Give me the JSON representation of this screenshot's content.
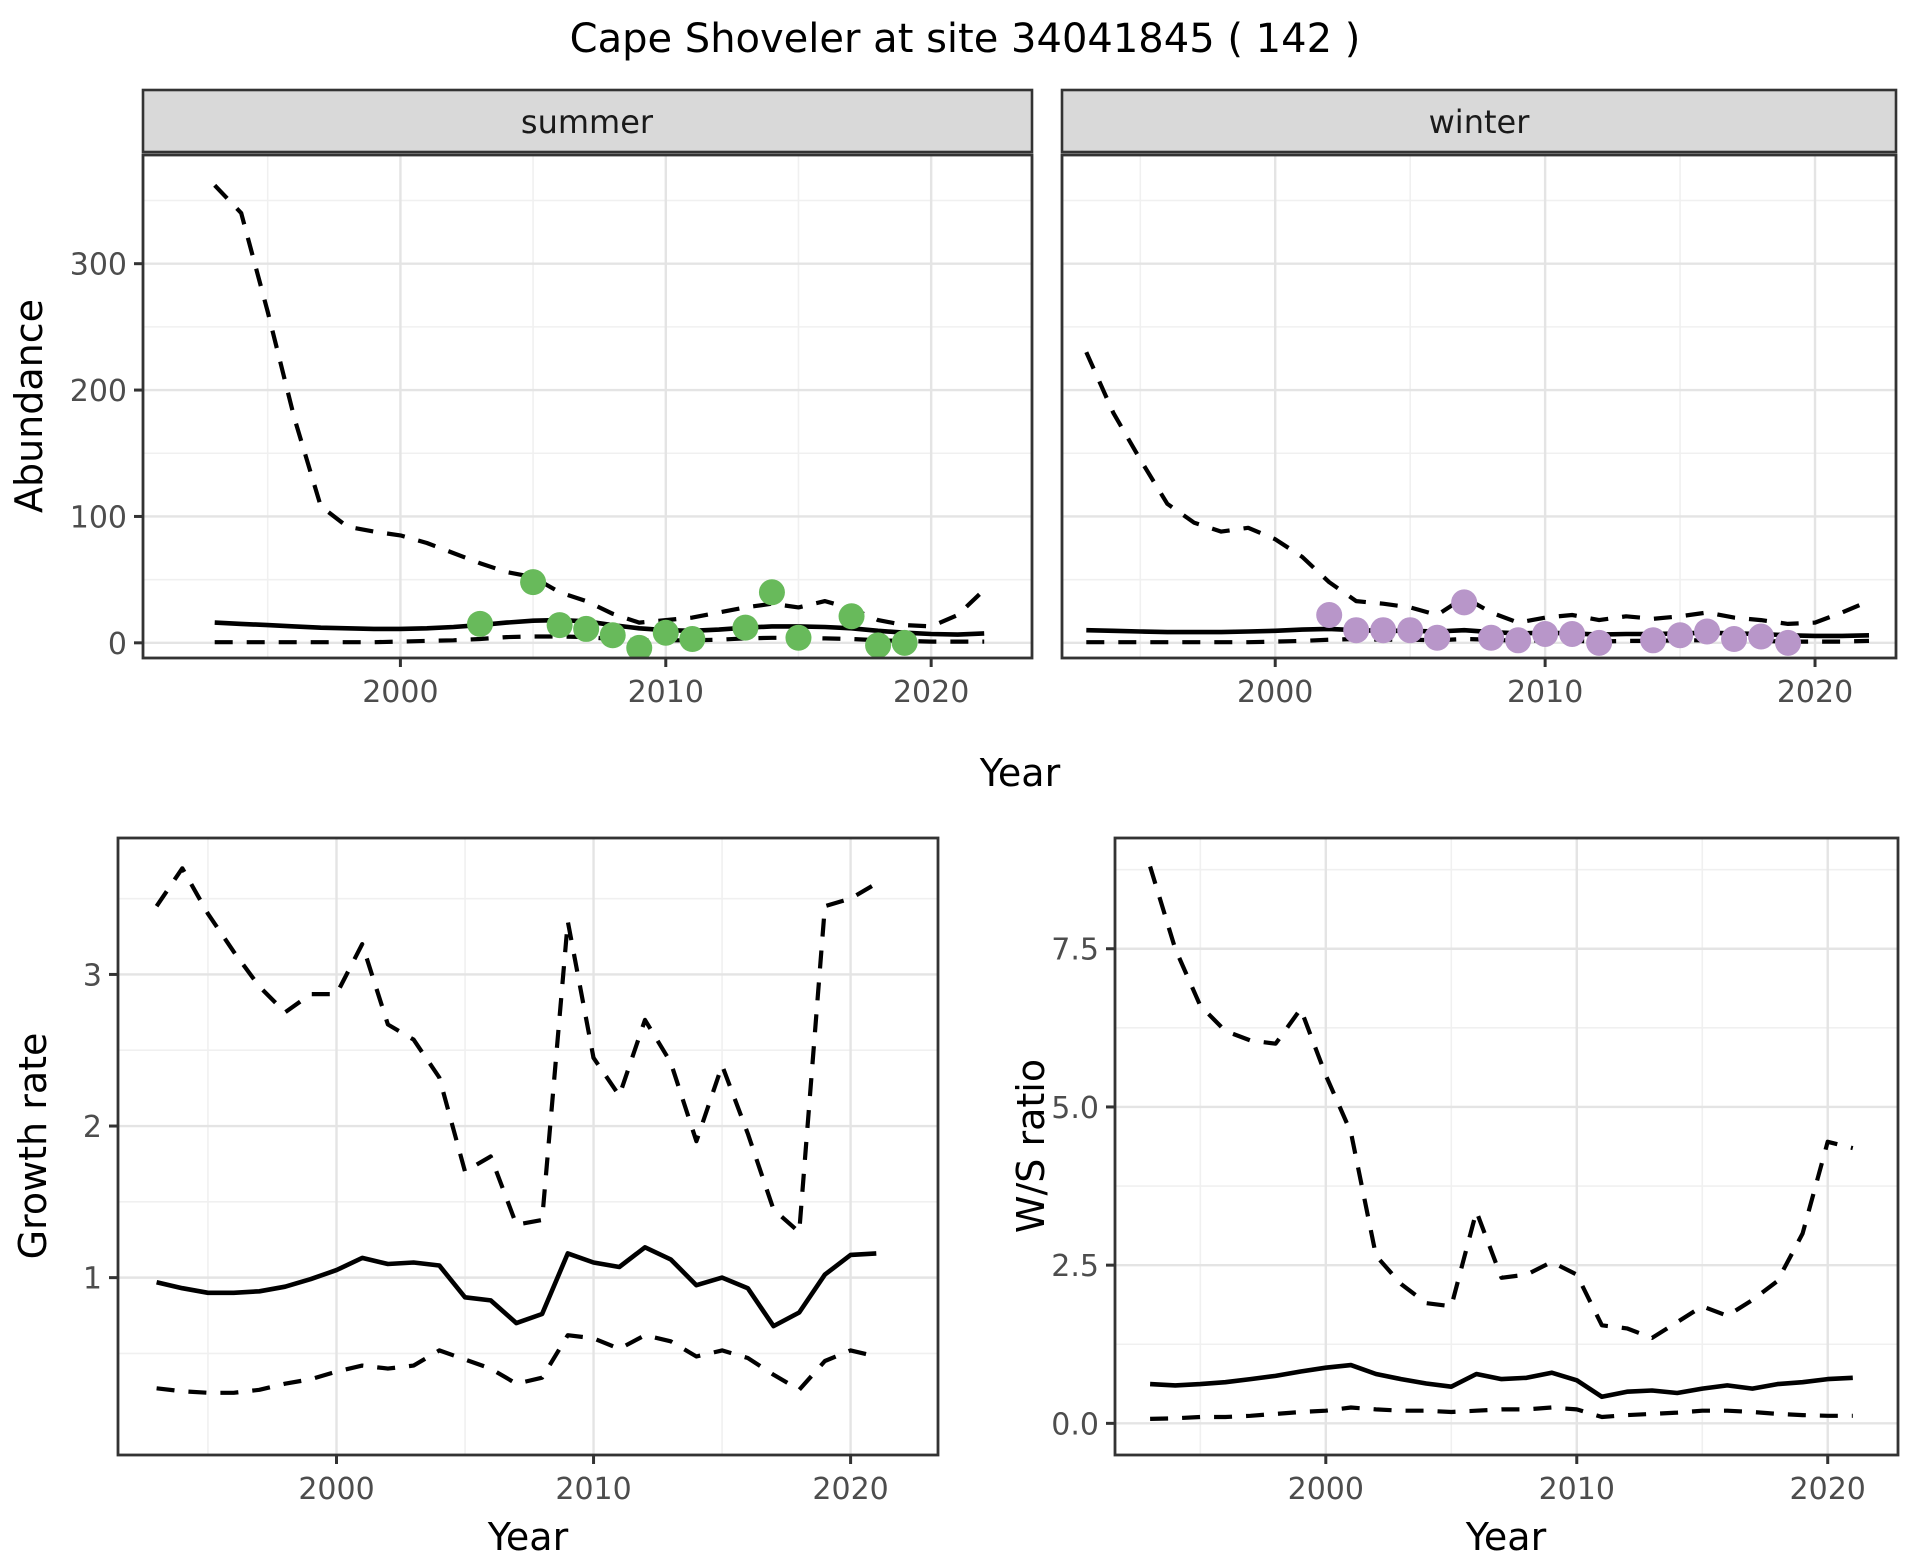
{
  "title": "Cape Shoveler at site 34041845 ( 142 )",
  "colors": {
    "summer_point": "#68BA5B",
    "winter_point": "#B896C9",
    "line": "#000000",
    "grid_major": "#E4E4E4",
    "grid_minor": "#F0F0F0",
    "panel_border": "#333333",
    "strip_bg": "#D9D9D9",
    "tick_text": "#4D4D4D",
    "title_text": "#000000",
    "background": "#FFFFFF"
  },
  "chart_data": [
    {
      "type": "line",
      "facet": "summer",
      "title": "",
      "xlabel": "Year",
      "ylabel": "Abundance",
      "xlim": [
        1990.3,
        2023.8
      ],
      "ylim": [
        -12,
        386
      ],
      "x_ticks": [
        2000,
        2010,
        2020
      ],
      "x_tick_labels": [
        "2000",
        "2010",
        "2020"
      ],
      "y_ticks": [
        0,
        100,
        200,
        300
      ],
      "y_tick_labels": [
        "0",
        "100",
        "200",
        "300"
      ],
      "grid": true,
      "legend": "none",
      "x": [
        1993,
        1994,
        1995,
        1996,
        1997,
        1998,
        1999,
        2000,
        2001,
        2002,
        2003,
        2004,
        2005,
        2006,
        2007,
        2008,
        2009,
        2010,
        2011,
        2012,
        2013,
        2014,
        2015,
        2016,
        2017,
        2018,
        2019,
        2020,
        2021,
        2022
      ],
      "series": [
        {
          "name": "upper_ci",
          "style": "dashed",
          "values": [
            362,
            340,
            262,
            178,
            108,
            92,
            88,
            85,
            79,
            71,
            63,
            56,
            52,
            40,
            33,
            23,
            16,
            18,
            20,
            24,
            28,
            31,
            28,
            33,
            27,
            18,
            14,
            13,
            22,
            42
          ]
        },
        {
          "name": "median",
          "style": "solid",
          "values": [
            16,
            15,
            14,
            13,
            12,
            11.5,
            11,
            11,
            11.5,
            12.5,
            14,
            16,
            17.5,
            18,
            17,
            14,
            11.5,
            10,
            9.5,
            10.5,
            12,
            13,
            13,
            12.5,
            11.5,
            9.5,
            8,
            7,
            6.5,
            7.5
          ]
        },
        {
          "name": "lower_ci",
          "style": "dashed",
          "values": [
            0.5,
            0.5,
            0.5,
            0.5,
            0.5,
            0.5,
            0.5,
            1,
            1.5,
            2,
            3,
            4.5,
            5,
            5,
            4.5,
            3,
            2,
            2,
            2,
            2.5,
            3.5,
            4,
            4,
            3.5,
            3,
            2,
            1.5,
            1,
            1,
            1
          ]
        }
      ],
      "points": {
        "name": "summer_observations",
        "color": "#68BA5B",
        "x": [
          2003,
          2005,
          2006,
          2007,
          2008,
          2009,
          2010,
          2011,
          2013,
          2014,
          2015,
          2017,
          2018,
          2019
        ],
        "y": [
          15,
          48,
          14,
          11,
          6,
          -4,
          8,
          3,
          12,
          40,
          4,
          21,
          -2,
          0
        ]
      }
    },
    {
      "type": "line",
      "facet": "winter",
      "title": "",
      "xlabel": "Year",
      "ylabel": "Abundance",
      "xlim": [
        1992.1,
        2023.0
      ],
      "ylim": [
        -12,
        386
      ],
      "x_ticks": [
        2000,
        2010,
        2020
      ],
      "x_tick_labels": [
        "2000",
        "2010",
        "2020"
      ],
      "y_ticks": [
        0,
        100,
        200,
        300
      ],
      "y_tick_labels": [
        "0",
        "100",
        "200",
        "300"
      ],
      "grid": true,
      "legend": "none",
      "x": [
        1993,
        1994,
        1995,
        1996,
        1997,
        1998,
        1999,
        2000,
        2001,
        2002,
        2003,
        2004,
        2005,
        2006,
        2007,
        2008,
        2009,
        2010,
        2011,
        2012,
        2013,
        2014,
        2015,
        2016,
        2017,
        2018,
        2019,
        2020,
        2021,
        2022
      ],
      "series": [
        {
          "name": "upper_ci",
          "style": "dashed",
          "values": [
            230,
            182,
            145,
            110,
            95,
            88,
            91,
            82,
            68,
            48,
            33,
            31,
            28,
            22,
            36,
            24,
            16,
            20,
            22,
            18,
            21,
            19,
            21,
            24,
            20,
            18,
            15,
            16,
            24,
            33
          ]
        },
        {
          "name": "median",
          "style": "solid",
          "values": [
            10,
            9.5,
            9,
            8.5,
            8.5,
            8.5,
            9,
            9.5,
            10.5,
            11,
            10,
            9.5,
            9.5,
            9,
            10,
            8.5,
            7.5,
            8,
            7.5,
            6.5,
            7,
            7,
            7.5,
            8,
            7.5,
            7,
            6,
            5.5,
            5.5,
            6
          ]
        },
        {
          "name": "lower_ci",
          "style": "dashed",
          "values": [
            0.5,
            0.5,
            0.5,
            0.5,
            0.5,
            0.5,
            0.5,
            1,
            1.5,
            2.5,
            3,
            2.5,
            2.5,
            2,
            3,
            2.5,
            1.5,
            2,
            1.5,
            1,
            1.5,
            1.5,
            2,
            2,
            1.5,
            1.5,
            1,
            1,
            1,
            1.5
          ]
        }
      ],
      "points": {
        "name": "winter_observations",
        "color": "#B896C9",
        "x": [
          2002,
          2003,
          2004,
          2005,
          2006,
          2007,
          2008,
          2009,
          2010,
          2011,
          2012,
          2014,
          2015,
          2016,
          2017,
          2018,
          2019
        ],
        "y": [
          22,
          10,
          10,
          10,
          4,
          32,
          4,
          2,
          7,
          7,
          0,
          2,
          6,
          9,
          3,
          5,
          0
        ]
      }
    },
    {
      "type": "line",
      "facet": "",
      "title": "",
      "xlabel": "Year",
      "ylabel": "Growth rate",
      "xlim": [
        1991.5,
        2023.4
      ],
      "ylim": [
        -0.17,
        3.9
      ],
      "x_ticks": [
        2000,
        2010,
        2020
      ],
      "x_tick_labels": [
        "2000",
        "2010",
        "2020"
      ],
      "y_ticks": [
        1,
        2,
        3
      ],
      "y_tick_labels": [
        "1",
        "2",
        "3"
      ],
      "grid": true,
      "legend": "none",
      "x": [
        1993,
        1994,
        1995,
        1996,
        1997,
        1998,
        1999,
        2000,
        2001,
        2002,
        2003,
        2004,
        2005,
        2006,
        2007,
        2008,
        2009,
        2010,
        2011,
        2012,
        2013,
        2014,
        2015,
        2016,
        2017,
        2018,
        2019,
        2020,
        2021
      ],
      "series": [
        {
          "name": "upper_ci",
          "style": "dashed",
          "values": [
            3.45,
            3.7,
            3.4,
            3.15,
            2.92,
            2.75,
            2.87,
            2.87,
            3.2,
            2.67,
            2.57,
            2.32,
            1.7,
            1.8,
            1.35,
            1.38,
            3.35,
            2.45,
            2.2,
            2.7,
            2.42,
            1.9,
            2.4,
            1.95,
            1.45,
            1.3,
            3.45,
            3.5,
            3.6
          ]
        },
        {
          "name": "median",
          "style": "solid",
          "values": [
            0.97,
            0.93,
            0.9,
            0.9,
            0.91,
            0.94,
            0.99,
            1.05,
            1.13,
            1.09,
            1.1,
            1.08,
            0.87,
            0.85,
            0.7,
            0.76,
            1.16,
            1.1,
            1.07,
            1.2,
            1.12,
            0.95,
            1.0,
            0.93,
            0.68,
            0.77,
            1.02,
            1.15,
            1.16
          ]
        },
        {
          "name": "lower_ci",
          "style": "dashed",
          "values": [
            0.27,
            0.25,
            0.24,
            0.24,
            0.26,
            0.3,
            0.33,
            0.38,
            0.42,
            0.4,
            0.42,
            0.52,
            0.46,
            0.4,
            0.3,
            0.34,
            0.62,
            0.6,
            0.53,
            0.62,
            0.58,
            0.48,
            0.52,
            0.47,
            0.36,
            0.26,
            0.45,
            0.52,
            0.48
          ]
        }
      ],
      "points": null
    },
    {
      "type": "line",
      "facet": "",
      "title": "",
      "xlabel": "Year",
      "ylabel": "W/S ratio",
      "xlim": [
        1991.6,
        2022.8
      ],
      "ylim": [
        -0.5,
        9.25
      ],
      "x_ticks": [
        2000,
        2010,
        2020
      ],
      "x_tick_labels": [
        "2000",
        "2010",
        "2020"
      ],
      "y_ticks": [
        0,
        2.5,
        5,
        7.5
      ],
      "y_tick_labels": [
        "0.0",
        "2.5",
        "5.0",
        "7.5"
      ],
      "grid": true,
      "legend": "none",
      "x": [
        1993,
        1994,
        1995,
        1996,
        1997,
        1998,
        1999,
        2000,
        2001,
        2002,
        2003,
        2004,
        2005,
        2006,
        2007,
        2008,
        2009,
        2010,
        2011,
        2012,
        2013,
        2014,
        2015,
        2016,
        2017,
        2018,
        2019,
        2020,
        2021
      ],
      "series": [
        {
          "name": "upper_ci",
          "style": "dashed",
          "values": [
            8.8,
            7.5,
            6.6,
            6.2,
            6.05,
            6.0,
            6.55,
            5.5,
            4.6,
            2.65,
            2.2,
            1.9,
            1.85,
            3.35,
            2.3,
            2.35,
            2.55,
            2.35,
            1.55,
            1.5,
            1.35,
            1.6,
            1.85,
            1.7,
            1.95,
            2.25,
            3.0,
            4.45,
            4.35
          ]
        },
        {
          "name": "median",
          "style": "solid",
          "values": [
            0.62,
            0.6,
            0.62,
            0.65,
            0.7,
            0.75,
            0.82,
            0.88,
            0.92,
            0.78,
            0.7,
            0.63,
            0.58,
            0.78,
            0.7,
            0.72,
            0.8,
            0.68,
            0.42,
            0.5,
            0.52,
            0.48,
            0.55,
            0.6,
            0.55,
            0.62,
            0.65,
            0.7,
            0.72
          ]
        },
        {
          "name": "lower_ci",
          "style": "dashed",
          "values": [
            0.07,
            0.08,
            0.1,
            0.1,
            0.12,
            0.15,
            0.18,
            0.2,
            0.25,
            0.22,
            0.2,
            0.2,
            0.18,
            0.2,
            0.22,
            0.22,
            0.25,
            0.22,
            0.1,
            0.13,
            0.15,
            0.17,
            0.2,
            0.2,
            0.18,
            0.15,
            0.13,
            0.12,
            0.12
          ]
        }
      ],
      "points": null
    }
  ]
}
